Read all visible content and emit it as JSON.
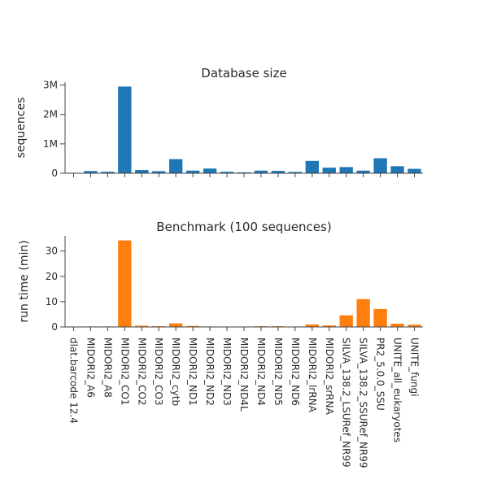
{
  "chart_data": [
    {
      "type": "bar",
      "title": "Database size",
      "xlabel": "",
      "ylabel": "sequences",
      "color": "#1f77b4",
      "ylim": [
        0,
        3100000
      ],
      "yticks": [
        0,
        1000000,
        2000000,
        3000000
      ],
      "ytick_labels": [
        "0",
        "1M",
        "2M",
        "3M"
      ],
      "categories": [
        "dlat.barcode 12.4",
        "MIDORI2_A6",
        "MIDORI2_A8",
        "MIDORI2_CO1",
        "MIDORI2_CO2",
        "MIDORI2_CO3",
        "MIDORI2_cytb",
        "MIDORI2_ND1",
        "MIDORI2_ND2",
        "MIDORI2_ND3",
        "MIDORI2_ND4L",
        "MIDORI2_ND4",
        "MIDORI2_ND5",
        "MIDORI2_ND6",
        "MIDORI2_lrRNA",
        "MIDORI2_srRNA",
        "SILVA_138.2_LSURef_NR99",
        "SILVA_138.2_SSURef_NR99",
        "PR2_5.0.0_SSU",
        "UNITE_all_eukaryotes",
        "UNITE_fungi"
      ],
      "values": [
        2000,
        75000,
        50000,
        2950000,
        110000,
        70000,
        480000,
        90000,
        160000,
        50000,
        30000,
        90000,
        80000,
        45000,
        420000,
        190000,
        210000,
        90000,
        510000,
        240000,
        150000
      ]
    },
    {
      "type": "bar",
      "title": "Benchmark (100 sequences)",
      "xlabel": "",
      "ylabel": "run time (min)",
      "color": "#ff7f0e",
      "ylim": [
        0,
        36
      ],
      "yticks": [
        0,
        10,
        20,
        30
      ],
      "ytick_labels": [
        "0",
        "10",
        "20",
        "30"
      ],
      "categories": [
        "dlat.barcode 12.4",
        "MIDORI2_A6",
        "MIDORI2_A8",
        "MIDORI2_CO1",
        "MIDORI2_CO2",
        "MIDORI2_CO3",
        "MIDORI2_cytb",
        "MIDORI2_ND1",
        "MIDORI2_ND2",
        "MIDORI2_ND3",
        "MIDORI2_ND4L",
        "MIDORI2_ND4",
        "MIDORI2_ND5",
        "MIDORI2_ND6",
        "MIDORI2_lrRNA",
        "MIDORI2_srRNA",
        "SILVA_138.2_LSURef_NR99",
        "SILVA_138.2_SSURef_NR99",
        "PR2_5.0.0_SSU",
        "UNITE_all_eukaryotes",
        "UNITE_fungi"
      ],
      "values": [
        0.1,
        0.2,
        0.2,
        34.2,
        0.5,
        0.3,
        1.4,
        0.4,
        0.2,
        0.1,
        0.1,
        0.3,
        0.3,
        0.1,
        1.0,
        0.6,
        4.6,
        11.0,
        7.1,
        1.3,
        0.9
      ]
    }
  ]
}
